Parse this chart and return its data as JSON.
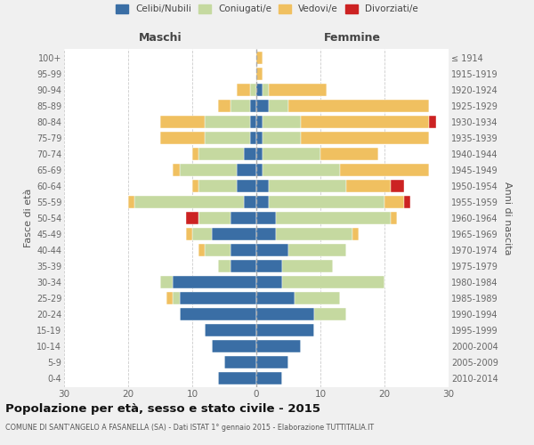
{
  "age_groups": [
    "100+",
    "95-99",
    "90-94",
    "85-89",
    "80-84",
    "75-79",
    "70-74",
    "65-69",
    "60-64",
    "55-59",
    "50-54",
    "45-49",
    "40-44",
    "35-39",
    "30-34",
    "25-29",
    "20-24",
    "15-19",
    "10-14",
    "5-9",
    "0-4"
  ],
  "birth_years": [
    "≤ 1914",
    "1915-1919",
    "1920-1924",
    "1925-1929",
    "1930-1934",
    "1935-1939",
    "1940-1944",
    "1945-1949",
    "1950-1954",
    "1955-1959",
    "1960-1964",
    "1965-1969",
    "1970-1974",
    "1975-1979",
    "1980-1984",
    "1985-1989",
    "1990-1994",
    "1995-1999",
    "2000-2004",
    "2005-2009",
    "2010-2014"
  ],
  "male_celibi": [
    0,
    0,
    0,
    1,
    1,
    1,
    2,
    3,
    3,
    2,
    4,
    7,
    4,
    4,
    13,
    12,
    12,
    8,
    7,
    5,
    6
  ],
  "male_coniugati": [
    0,
    0,
    1,
    3,
    7,
    7,
    7,
    9,
    6,
    17,
    5,
    3,
    4,
    2,
    2,
    1,
    0,
    0,
    0,
    0,
    0
  ],
  "male_vedovi": [
    0,
    0,
    2,
    2,
    7,
    7,
    1,
    1,
    1,
    1,
    0,
    1,
    1,
    0,
    0,
    1,
    0,
    0,
    0,
    0,
    0
  ],
  "male_divorziati": [
    0,
    0,
    0,
    0,
    0,
    0,
    0,
    0,
    0,
    0,
    2,
    0,
    0,
    0,
    0,
    0,
    0,
    0,
    0,
    0,
    0
  ],
  "female_celibi": [
    0,
    0,
    1,
    2,
    1,
    1,
    1,
    1,
    2,
    2,
    3,
    3,
    5,
    4,
    4,
    6,
    9,
    9,
    7,
    5,
    4
  ],
  "female_coniugati": [
    0,
    0,
    1,
    3,
    6,
    6,
    9,
    12,
    12,
    18,
    18,
    12,
    9,
    8,
    16,
    7,
    5,
    0,
    0,
    0,
    0
  ],
  "female_vedovi": [
    1,
    1,
    9,
    22,
    20,
    20,
    9,
    14,
    7,
    3,
    1,
    1,
    0,
    0,
    0,
    0,
    0,
    0,
    0,
    0,
    0
  ],
  "female_divorziati": [
    0,
    0,
    0,
    0,
    1,
    0,
    0,
    0,
    2,
    1,
    0,
    0,
    0,
    0,
    0,
    0,
    0,
    0,
    0,
    0,
    0
  ],
  "colors": {
    "celibi": "#3a6ea5",
    "coniugati": "#c5d9a0",
    "vedovi": "#f0c060",
    "divorziati": "#cc2222"
  },
  "title": "Popolazione per età, sesso e stato civile - 2015",
  "subtitle": "COMUNE DI SANT'ANGELO A FASANELLA (SA) - Dati ISTAT 1° gennaio 2015 - Elaborazione TUTTITALIA.IT",
  "ylabel_left": "Fasce di età",
  "ylabel_right": "Anni di nascita",
  "xlabel_left": "Maschi",
  "xlabel_right": "Femmine",
  "xlim": 30,
  "bg_color": "#f0f0f0",
  "plot_bg": "#ffffff"
}
